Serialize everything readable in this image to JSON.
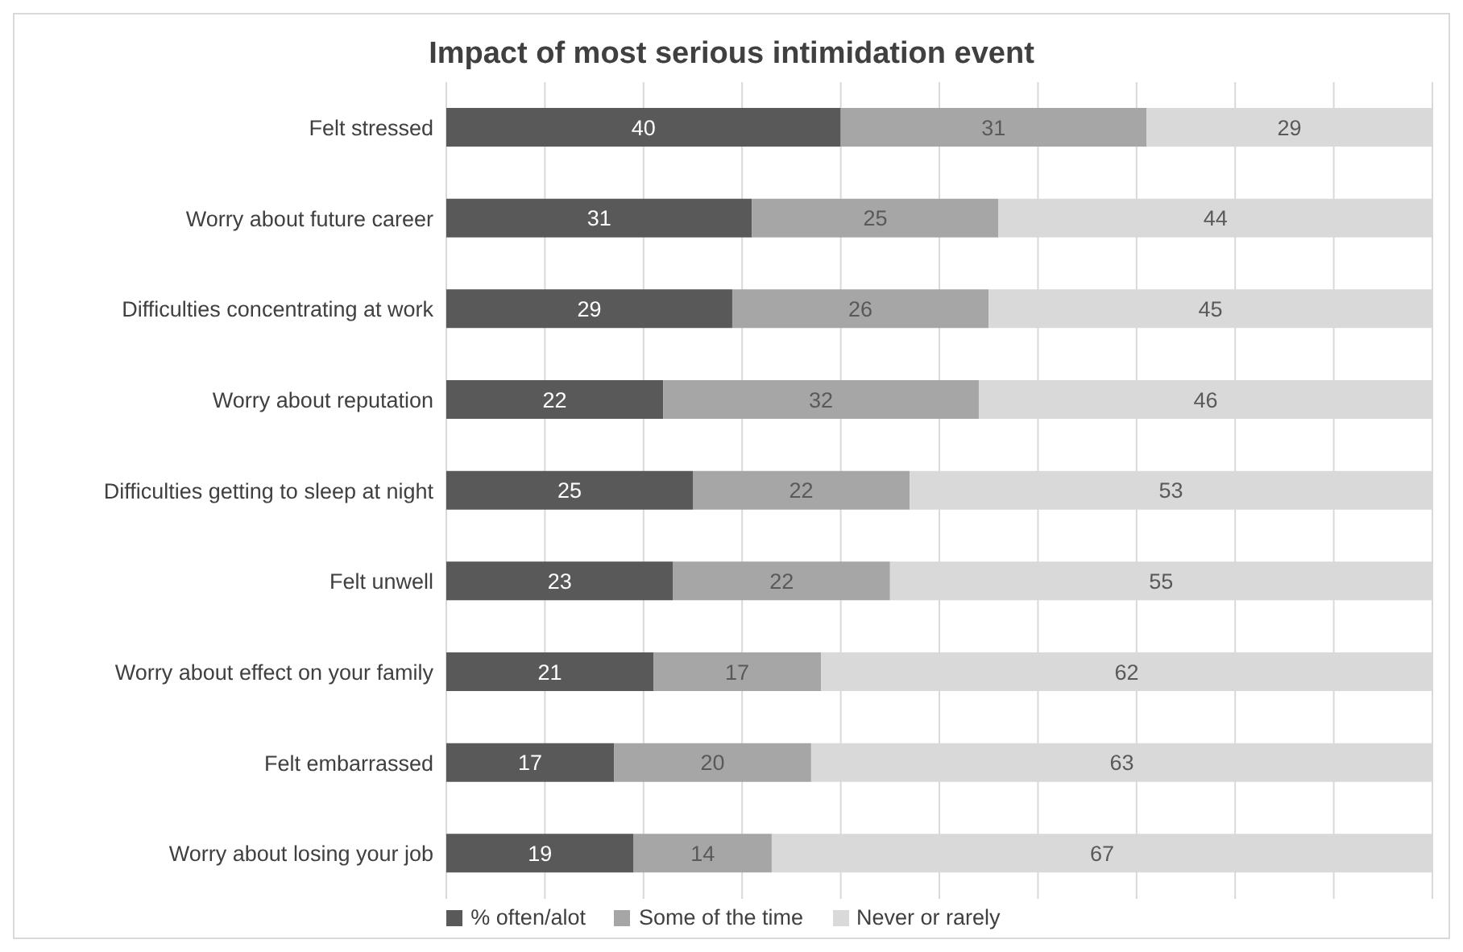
{
  "chart_data": {
    "type": "bar",
    "orientation": "horizontal",
    "stacked": true,
    "title": "Impact of most serious intimidation event",
    "categories": [
      "Felt stressed",
      "Worry about future career",
      "Difficulties concentrating at work",
      "Worry about reputation",
      "Difficulties getting to sleep at night",
      "Felt unwell",
      "Worry about effect on your family",
      "Felt embarrassed",
      "Worry about losing your job"
    ],
    "series": [
      {
        "name": "% often/alot",
        "color": "#595959",
        "values": [
          40,
          31,
          29,
          22,
          25,
          23,
          21,
          17,
          19
        ]
      },
      {
        "name": "Some of the time",
        "color": "#a6a6a6",
        "values": [
          31,
          25,
          26,
          32,
          22,
          22,
          17,
          20,
          14
        ]
      },
      {
        "name": "Never or rarely",
        "color": "#d9d9d9",
        "values": [
          29,
          44,
          45,
          46,
          53,
          55,
          62,
          63,
          67
        ]
      }
    ],
    "xlim": [
      0,
      100
    ],
    "xticks": [
      {
        "value": 0,
        "label": null
      },
      {
        "value": 10,
        "label": null
      },
      {
        "value": 20,
        "label": null
      },
      {
        "value": 30,
        "label": null
      },
      {
        "value": 40,
        "label": null
      },
      {
        "value": 50,
        "label": null
      },
      {
        "value": 60,
        "label": null
      },
      {
        "value": 70,
        "label": null
      },
      {
        "value": 80,
        "label": null
      },
      {
        "value": 90,
        "label": null
      },
      {
        "value": 100,
        "label": null
      }
    ],
    "grid": "x",
    "legend": "bottom",
    "tick_labels": "y",
    "data_labels": true
  }
}
